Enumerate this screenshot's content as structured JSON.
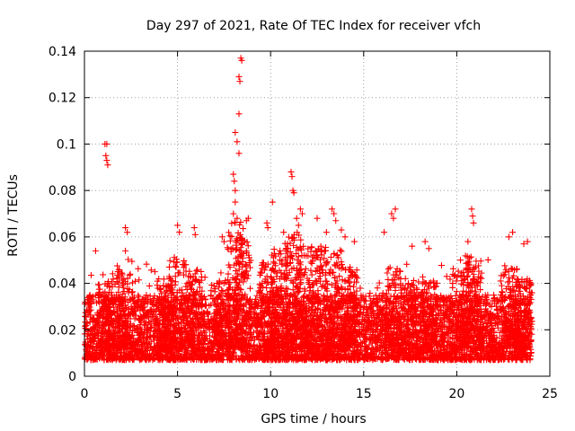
{
  "chart_data": {
    "type": "scatter",
    "title": "Day 297 of 2021, Rate Of TEC Index for receiver vfch",
    "xlabel": "GPS time / hours",
    "ylabel": "ROTI / TECUs",
    "xlim": [
      0,
      25
    ],
    "ylim": [
      0,
      0.14
    ],
    "xticks": [
      0,
      5,
      10,
      15,
      20,
      25
    ],
    "yticks": [
      0,
      0.02,
      0.04,
      0.06,
      0.08,
      0.1,
      0.12,
      0.14
    ],
    "xtick_labels": [
      "0",
      "5",
      "10",
      "15",
      "20",
      "25"
    ],
    "ytick_labels": [
      "0",
      "0.02",
      "0.04",
      "0.06",
      "0.08",
      "0.1",
      "0.12",
      "0.14"
    ],
    "grid": true,
    "marker": "+",
    "color": "#ff0000",
    "series": [
      {
        "name": "ROTI",
        "points": [
          [
            1.1,
            0.1
          ],
          [
            1.2,
            0.1
          ],
          [
            1.15,
            0.095
          ],
          [
            1.2,
            0.093
          ],
          [
            1.25,
            0.091
          ],
          [
            0.6,
            0.054
          ],
          [
            2.2,
            0.064
          ],
          [
            2.3,
            0.062
          ],
          [
            2.2,
            0.054
          ],
          [
            5.0,
            0.065
          ],
          [
            5.1,
            0.062
          ],
          [
            5.9,
            0.064
          ],
          [
            5.95,
            0.061
          ],
          [
            7.4,
            0.06
          ],
          [
            7.5,
            0.058
          ],
          [
            8.0,
            0.087
          ],
          [
            8.05,
            0.084
          ],
          [
            8.1,
            0.08
          ],
          [
            8.1,
            0.075
          ],
          [
            8.0,
            0.07
          ],
          [
            8.2,
            0.068
          ],
          [
            8.1,
            0.105
          ],
          [
            8.2,
            0.101
          ],
          [
            8.3,
            0.096
          ],
          [
            8.3,
            0.129
          ],
          [
            8.35,
            0.127
          ],
          [
            8.4,
            0.137
          ],
          [
            8.45,
            0.136
          ],
          [
            8.3,
            0.113
          ],
          [
            8.7,
            0.067
          ],
          [
            8.8,
            0.068
          ],
          [
            9.8,
            0.066
          ],
          [
            9.85,
            0.064
          ],
          [
            10.1,
            0.075
          ],
          [
            10.7,
            0.062
          ],
          [
            11.1,
            0.088
          ],
          [
            11.15,
            0.086
          ],
          [
            11.2,
            0.08
          ],
          [
            11.25,
            0.079
          ],
          [
            11.4,
            0.068
          ],
          [
            11.6,
            0.072
          ],
          [
            11.7,
            0.07
          ],
          [
            11.5,
            0.065
          ],
          [
            12.5,
            0.068
          ],
          [
            13.0,
            0.062
          ],
          [
            13.3,
            0.072
          ],
          [
            13.4,
            0.07
          ],
          [
            13.5,
            0.067
          ],
          [
            13.8,
            0.063
          ],
          [
            14.0,
            0.06
          ],
          [
            14.5,
            0.058
          ],
          [
            16.1,
            0.062
          ],
          [
            16.5,
            0.07
          ],
          [
            16.6,
            0.068
          ],
          [
            16.7,
            0.072
          ],
          [
            17.6,
            0.056
          ],
          [
            18.3,
            0.058
          ],
          [
            18.5,
            0.055
          ],
          [
            20.2,
            0.05
          ],
          [
            20.6,
            0.058
          ],
          [
            20.8,
            0.072
          ],
          [
            20.85,
            0.069
          ],
          [
            20.9,
            0.066
          ],
          [
            22.8,
            0.06
          ],
          [
            23.0,
            0.062
          ],
          [
            23.6,
            0.057
          ],
          [
            23.8,
            0.058
          ]
        ],
        "baseline_note": "dense band of points between about 0.005 and 0.035 across all hours 0-24"
      }
    ]
  }
}
